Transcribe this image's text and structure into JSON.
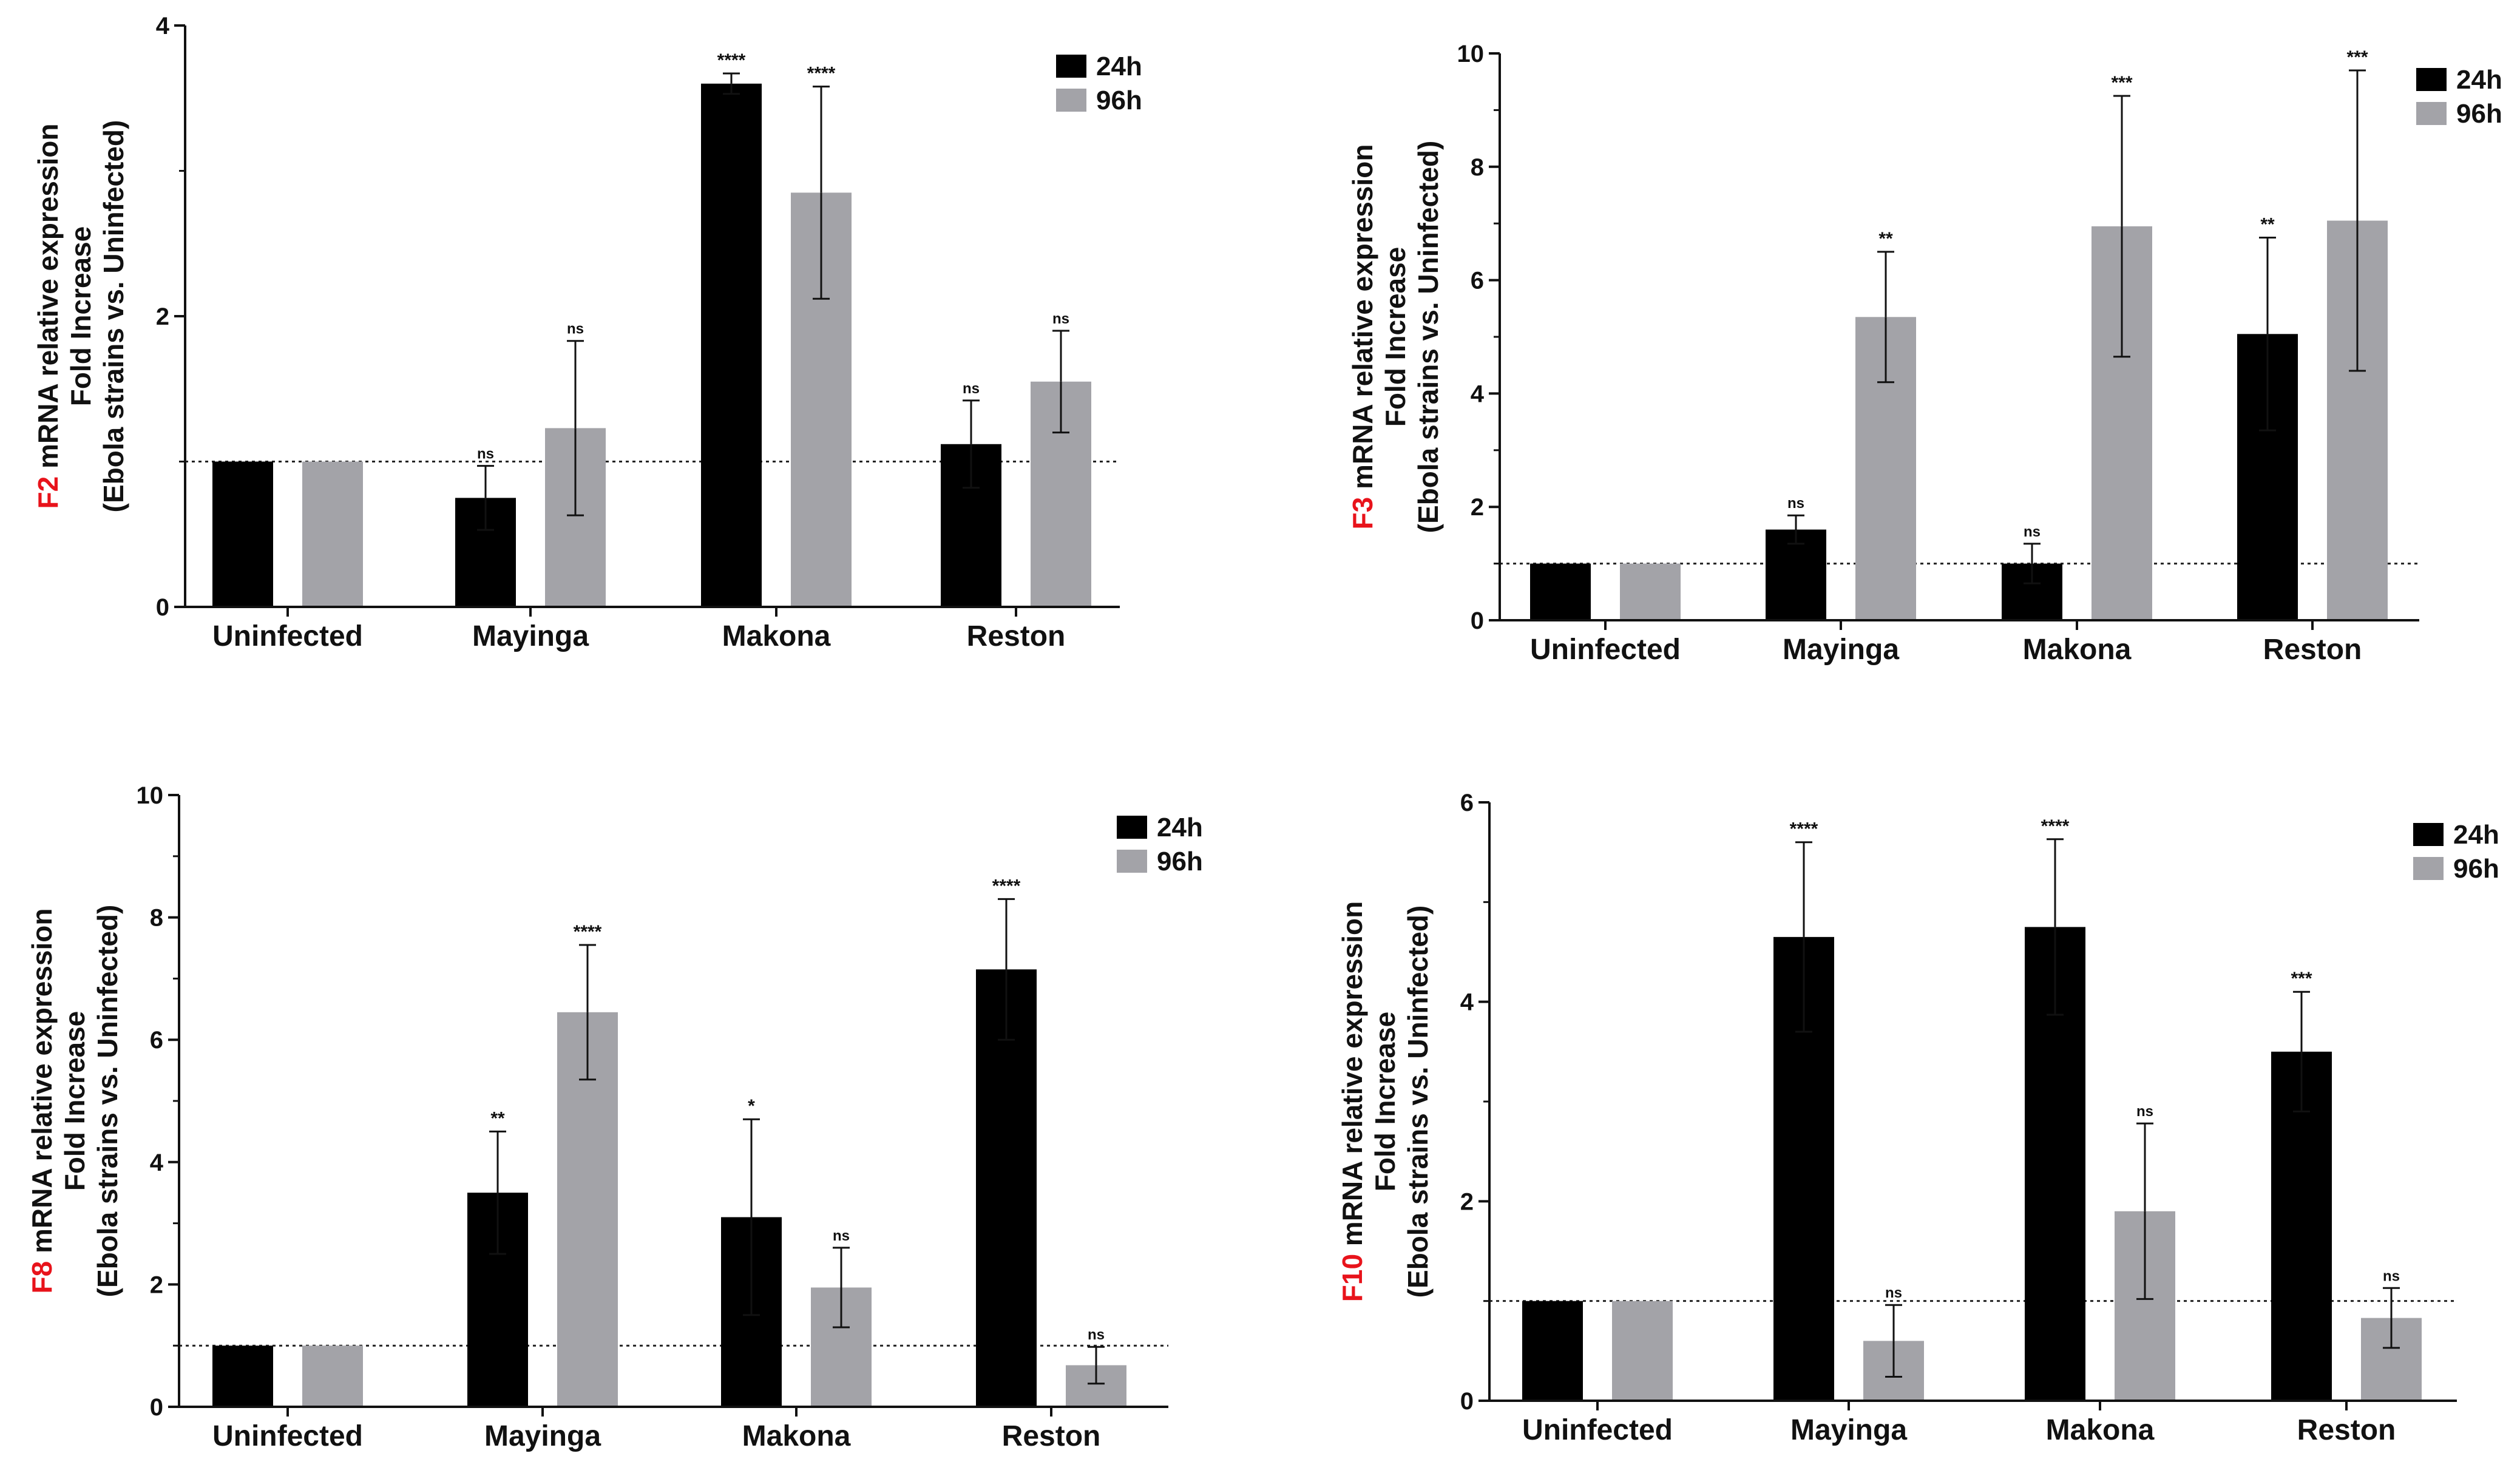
{
  "colors": {
    "series_24h": "#000000",
    "series_96h": "#a3a3a8",
    "gene_red": "#e8131b",
    "axis": "#111111"
  },
  "chart_data": [
    {
      "id": "f2",
      "type": "bar",
      "gene": "F2",
      "ylabel_line1": " mRNA relative expression",
      "ylabel_line2": "Fold Increase",
      "ylabel_line3": "(Ebola strains vs. Uninfected)",
      "categories": [
        "Uninfected",
        "Mayinga",
        "Makona",
        "Reston"
      ],
      "ylim": [
        0,
        4
      ],
      "yticks": [
        0,
        2,
        4
      ],
      "yticklabels": [
        "0",
        "2",
        "4"
      ],
      "reference_line": 1,
      "legend": [
        "24h",
        "96h"
      ],
      "series": [
        {
          "name": "24h",
          "values": [
            1.0,
            0.75,
            3.6,
            1.12
          ],
          "errors": [
            0,
            0.22,
            0.07,
            0.3
          ],
          "sig": [
            "",
            "ns",
            "****",
            "ns"
          ]
        },
        {
          "name": "96h",
          "values": [
            1.0,
            1.23,
            2.85,
            1.55
          ],
          "errors": [
            0,
            0.6,
            0.73,
            0.35
          ],
          "sig": [
            "",
            "ns",
            "****",
            "ns"
          ]
        }
      ]
    },
    {
      "id": "f3",
      "type": "bar",
      "gene": "F3",
      "ylabel_line1": " mRNA relative expression",
      "ylabel_line2": "Fold Increase",
      "ylabel_line3": "(Ebola strains vs. Uninfected)",
      "categories": [
        "Uninfected",
        "Mayinga",
        "Makona",
        "Reston"
      ],
      "ylim": [
        0,
        10
      ],
      "yticks": [
        0,
        2,
        4,
        6,
        8,
        10
      ],
      "yticklabels": [
        "0",
        "2",
        "4",
        "6",
        "8",
        "10"
      ],
      "reference_line": 1,
      "legend": [
        "24h",
        "96h"
      ],
      "series": [
        {
          "name": "24h",
          "values": [
            1.0,
            1.6,
            1.0,
            5.05
          ],
          "errors": [
            0,
            0.25,
            0.35,
            1.7
          ],
          "sig": [
            "",
            "ns",
            "ns",
            "**"
          ]
        },
        {
          "name": "96h",
          "values": [
            1.0,
            5.35,
            6.95,
            7.05
          ],
          "errors": [
            0,
            1.15,
            2.3,
            2.65
          ],
          "sig": [
            "",
            "**",
            "***",
            "***"
          ]
        }
      ]
    },
    {
      "id": "f8",
      "type": "bar",
      "gene": "F8",
      "ylabel_line1": " mRNA relative expression",
      "ylabel_line2": "Fold Increase",
      "ylabel_line3": "(Ebola strains vs. Uninfected)",
      "categories": [
        "Uninfected",
        "Mayinga",
        "Makona",
        "Reston"
      ],
      "ylim": [
        0,
        10
      ],
      "yticks": [
        0,
        2,
        4,
        6,
        8,
        10
      ],
      "yticklabels": [
        "0",
        "2",
        "4",
        "6",
        "8",
        "10"
      ],
      "reference_line": 1,
      "legend": [
        "24h",
        "96h"
      ],
      "series": [
        {
          "name": "24h",
          "values": [
            1.0,
            3.5,
            3.1,
            7.15
          ],
          "errors": [
            0,
            1.0,
            1.6,
            1.15
          ],
          "sig": [
            "",
            "**",
            "*",
            "****"
          ]
        },
        {
          "name": "96h",
          "values": [
            1.0,
            6.45,
            1.95,
            0.68
          ],
          "errors": [
            0,
            1.1,
            0.65,
            0.3
          ],
          "sig": [
            "",
            "****",
            "ns",
            "ns"
          ]
        }
      ]
    },
    {
      "id": "f10",
      "type": "bar",
      "gene": "F10",
      "ylabel_line1": " mRNA relative expression",
      "ylabel_line2": "Fold Increase",
      "ylabel_line3": "(Ebola strains vs. Uninfected)",
      "categories": [
        "Uninfected",
        "Mayinga",
        "Makona",
        "Reston"
      ],
      "ylim": [
        0,
        6
      ],
      "yticks": [
        0,
        2,
        4,
        6
      ],
      "yticklabels": [
        "0",
        "2",
        "4",
        "6"
      ],
      "reference_line": 1,
      "legend": [
        "24h",
        "96h"
      ],
      "series": [
        {
          "name": "24h",
          "values": [
            1.0,
            4.65,
            4.75,
            3.5
          ],
          "errors": [
            0,
            0.95,
            0.88,
            0.6
          ],
          "sig": [
            "",
            "****",
            "****",
            "***"
          ]
        },
        {
          "name": "96h",
          "values": [
            1.0,
            0.6,
            1.9,
            0.83
          ],
          "errors": [
            0,
            0.36,
            0.88,
            0.3
          ],
          "sig": [
            "",
            "ns",
            "ns",
            "ns"
          ]
        }
      ]
    }
  ]
}
